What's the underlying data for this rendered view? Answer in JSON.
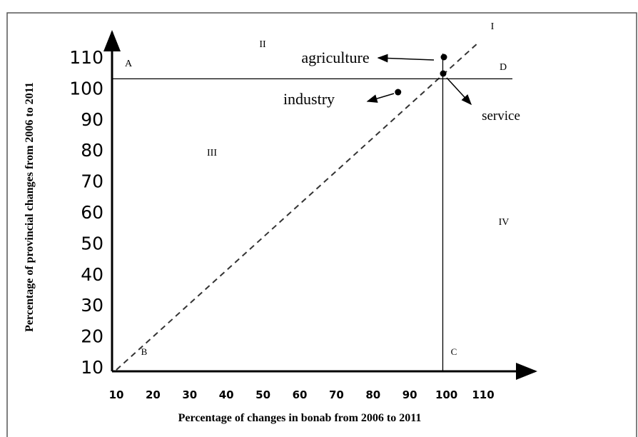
{
  "chart_data": {
    "type": "scatter",
    "xlabel": "Percentage of changes in bonab from 2006 to 2011",
    "ylabel": "Percentage of provincial changes from 2006 to 2011",
    "xlim": [
      10,
      110
    ],
    "ylim": [
      10,
      110
    ],
    "xticks": [
      10,
      20,
      30,
      40,
      50,
      60,
      70,
      80,
      90,
      100,
      110
    ],
    "yticks": [
      10,
      20,
      30,
      40,
      50,
      60,
      70,
      80,
      90,
      100,
      110
    ],
    "vline": 99,
    "hline": 103,
    "series": [
      {
        "name": "agriculture",
        "color": "#000000",
        "x": [
          99.3
        ],
        "values": [
          110
        ]
      },
      {
        "name": "industry",
        "color": "#000000",
        "x": [
          86.8
        ],
        "values": [
          98.7
        ]
      },
      {
        "name": "service",
        "color": "#000000",
        "x": [
          99.1
        ],
        "values": [
          104.7
        ]
      }
    ],
    "annotations": [
      "A",
      "II",
      "I",
      "D",
      "III",
      "IV",
      "B",
      "C"
    ]
  }
}
